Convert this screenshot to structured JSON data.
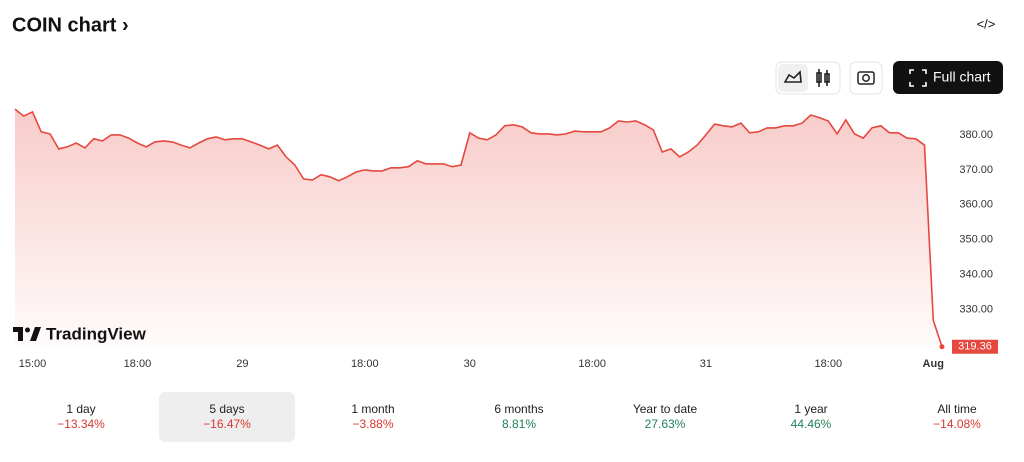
{
  "header": {
    "title": "COIN chart ›",
    "embed": "</>"
  },
  "toolbar": {
    "full_chart": "Full chart"
  },
  "brand": "TradingView",
  "chart_data": {
    "type": "line",
    "color": "#e5483e",
    "categories": [
      null,
      null,
      "15:00",
      null,
      null,
      null,
      null,
      null,
      null,
      null,
      null,
      null,
      null,
      null,
      "18:00",
      null,
      null,
      null,
      null,
      null,
      null,
      null,
      null,
      null,
      null,
      null,
      "29",
      null,
      null,
      null,
      null,
      null,
      null,
      null,
      null,
      null,
      null,
      null,
      null,
      null,
      "18:00",
      null,
      null,
      null,
      null,
      null,
      null,
      null,
      null,
      null,
      null,
      null,
      "30",
      null,
      null,
      null,
      null,
      null,
      null,
      null,
      null,
      null,
      null,
      null,
      null,
      null,
      "18:00",
      null,
      null,
      null,
      null,
      null,
      null,
      null,
      null,
      null,
      null,
      null,
      null,
      "31",
      null,
      null,
      null,
      null,
      null,
      null,
      null,
      null,
      null,
      null,
      null,
      null,
      null,
      "18:00",
      null,
      null,
      null,
      null,
      null,
      null,
      null,
      null,
      null,
      null,
      null,
      "Aug",
      null
    ],
    "values": [
      387.4,
      385.4,
      386.6,
      380.9,
      380.3,
      376.0,
      376.6,
      377.7,
      376.3,
      378.9,
      378.3,
      380,
      380,
      379.1,
      377.7,
      376.6,
      378,
      378.3,
      378,
      377.1,
      376.3,
      377.7,
      378.9,
      379.4,
      378.6,
      378.9,
      378.9,
      378,
      377.1,
      376,
      377.1,
      373.7,
      371.4,
      367.4,
      367.1,
      368.6,
      368,
      366.9,
      368,
      369.4,
      370,
      369.7,
      369.7,
      370.6,
      370.6,
      370.9,
      372.6,
      371.7,
      371.7,
      371.7,
      370.9,
      371.4,
      380.6,
      379.1,
      378.6,
      380,
      382.6,
      382.9,
      382.3,
      380.6,
      380.3,
      380.3,
      380,
      380.3,
      381.1,
      380.9,
      380.9,
      380.9,
      382,
      384,
      383.7,
      384,
      382.9,
      381.4,
      375.1,
      376,
      373.7,
      375.1,
      377.1,
      380,
      383.1,
      382.6,
      382.3,
      383.4,
      380.6,
      380.9,
      382,
      382,
      382.6,
      382.6,
      383.4,
      385.7,
      384.9,
      384,
      380.3,
      384.3,
      380.3,
      379.1,
      382,
      382.6,
      380.6,
      380.6,
      379.1,
      378.9,
      377.1,
      326.9,
      319.36
    ],
    "ylim": [
      319,
      390
    ],
    "yticks": [
      {
        "value": 330,
        "label": "330.00"
      },
      {
        "value": 340,
        "label": "340.00"
      },
      {
        "value": 350,
        "label": "350.00"
      },
      {
        "value": 360,
        "label": "360.00"
      },
      {
        "value": 370,
        "label": "370.00"
      },
      {
        "value": 380,
        "label": "380.00"
      }
    ]
  },
  "periods": {
    "selected": 1,
    "items": [
      {
        "label": "1 day",
        "change": "−13.34%"
      },
      {
        "label": "5 days",
        "change": "−16.47%"
      },
      {
        "label": "1 month",
        "change": "−3.88%"
      },
      {
        "label": "6 months",
        "change": "8.81%"
      },
      {
        "label": "Year to date",
        "change": "27.63%"
      },
      {
        "label": "1 year",
        "change": "44.46%"
      },
      {
        "label": "All time",
        "change": "−14.08%"
      }
    ]
  }
}
